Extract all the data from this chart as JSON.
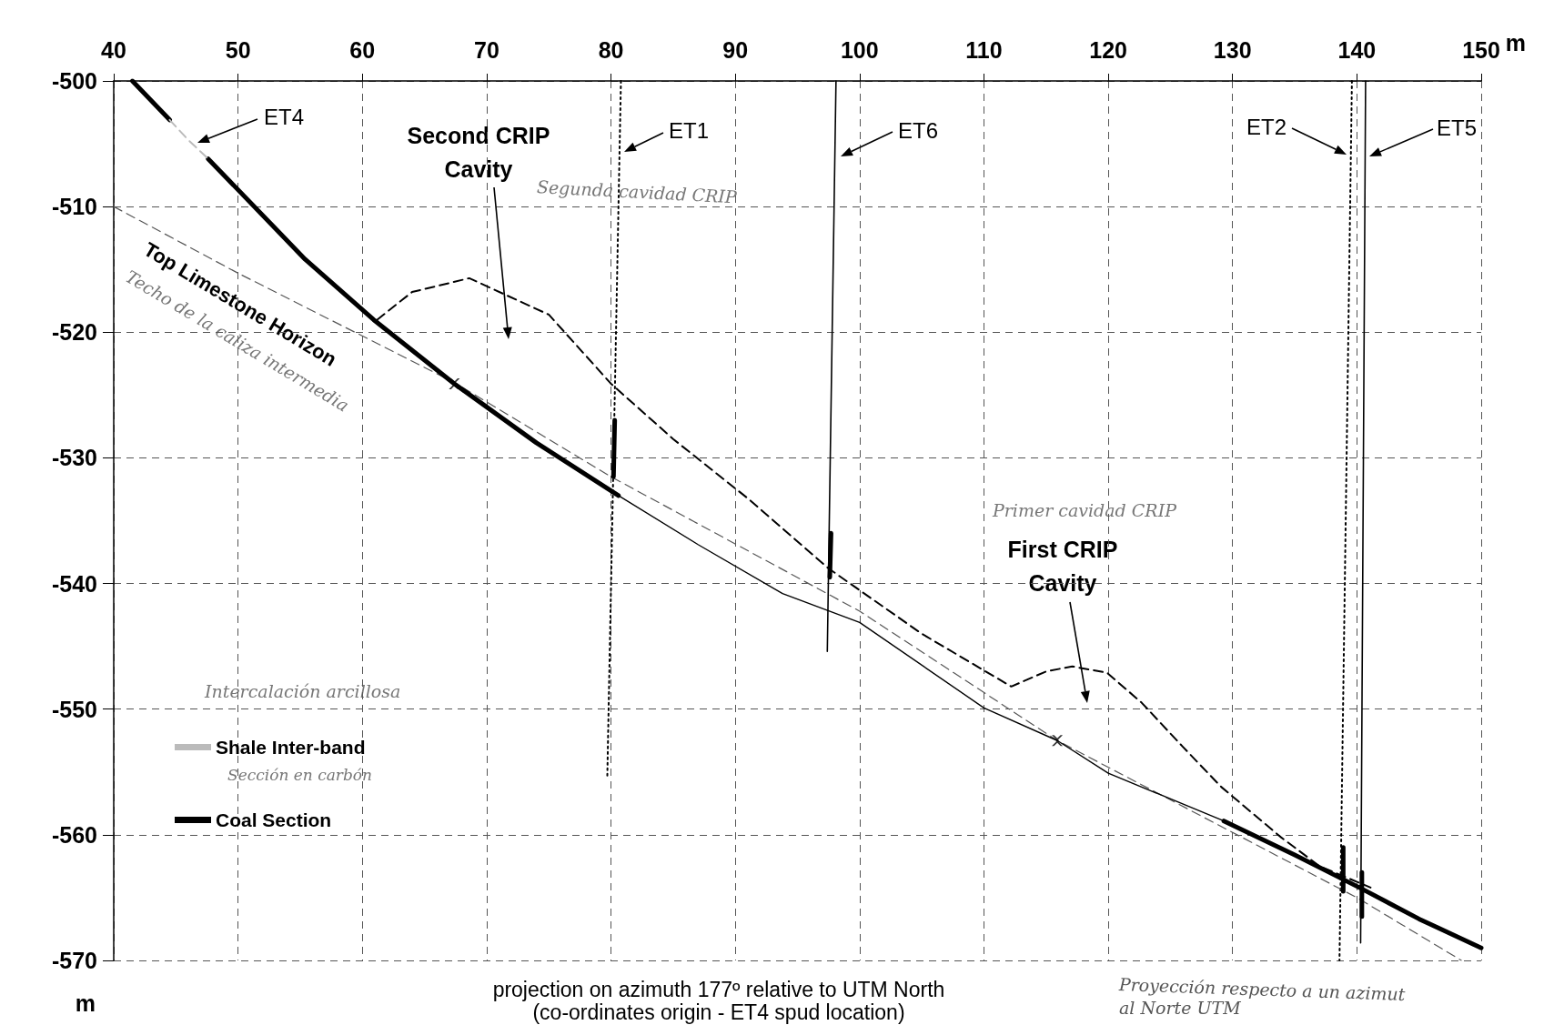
{
  "chart_data": {
    "type": "line",
    "xlabel": "m",
    "ylabel": "m",
    "xlim": [
      40,
      150
    ],
    "ylim": [
      -570,
      -500
    ],
    "xticks": [
      40,
      50,
      60,
      70,
      80,
      90,
      100,
      110,
      120,
      130,
      140,
      150
    ],
    "yticks": [
      -570,
      -560,
      -550,
      -540,
      -530,
      -520,
      -510,
      -500
    ],
    "grid": true,
    "legend": "left",
    "series": [
      {
        "name": "Shale Inter-band",
        "color": "#bbbbbb",
        "line_style": "dashed",
        "x": [
          44.5,
          46,
          47.6
        ],
        "values": [
          -503.1,
          -504.7,
          -506.2
        ]
      },
      {
        "name": "Coal Section",
        "color": "#000000",
        "line_style": "solid",
        "x": [
          41.5,
          44.5,
          46,
          47.6,
          55.4,
          60.9,
          67.4,
          74,
          80.6,
          80.5,
          80.3,
          80.2,
          90,
          97.7,
          97.6,
          110,
          129.3,
          135,
          140.2,
          145,
          150,
          145,
          138.9,
          138.9,
          139.5,
          140.4,
          140.4
        ],
        "values": [
          -500,
          -503.1,
          null,
          -506.2,
          -514.2,
          -519,
          -524.1,
          -528.8,
          -533,
          null,
          -527,
          -531.5,
          null,
          -536,
          -539.5,
          null,
          -558.9,
          -561.6,
          -564.2,
          -566.7,
          -569,
          null,
          -561,
          -564.5,
          null,
          -563,
          -566.5
        ]
      },
      {
        "color": "#000000",
        "line_style": "solid",
        "x": [
          80.6,
          87,
          93.8,
          100,
          110,
          115.9,
          120,
          129.3
        ],
        "values": [
          -533,
          -536.9,
          -540.8,
          -543.1,
          -549.9,
          -552.5,
          -555.1,
          -558.9
        ]
      },
      {
        "color": "#555555",
        "line_style": "dashed",
        "x": [
          40,
          50,
          67.4,
          80,
          100,
          115.9,
          140,
          148.4
        ],
        "values": [
          -510,
          -515.3,
          -524,
          -531.5,
          -542.2,
          -552.5,
          -565,
          -570
        ]
      },
      {
        "color": "#000000",
        "line_style": "dashed",
        "x": [
          61.2,
          64,
          68.6,
          75,
          80,
          85,
          91.1,
          97.5,
          105,
          112.2,
          115,
          117.1,
          119.9,
          122.7,
          126,
          129.1,
          133.9,
          137,
          141.1
        ],
        "values": [
          -519,
          -516.8,
          -515.7,
          -518.6,
          -524.1,
          -528.5,
          -533.3,
          -538.8,
          -544,
          -548.2,
          -547,
          -546.6,
          -547.1,
          -549.5,
          -553,
          -556.2,
          -560.2,
          -562.5,
          -564.2
        ]
      },
      {
        "color": "#000000",
        "line_style": "dotted",
        "x": [
          80.8,
          79.7
        ],
        "values": [
          -500,
          -555.5
        ]
      },
      {
        "color": "#000000",
        "line_style": "solid",
        "x": [
          98.1,
          97.4
        ],
        "values": [
          -500,
          -545.4
        ]
      },
      {
        "color": "#000000",
        "line_style": "dotted",
        "x": [
          139.6,
          138.6
        ],
        "values": [
          -500,
          -570
        ]
      },
      {
        "color": "#000000",
        "line_style": "solid",
        "x": [
          140.7,
          140.3
        ],
        "values": [
          -500,
          -568.6
        ]
      },
      {
        "type": "scatter",
        "color": "#000000",
        "marker": "cross",
        "x": [
          67.4,
          115.9
        ],
        "values": [
          -524.1,
          -552.5
        ]
      }
    ],
    "annotations": [
      "ET4",
      "ET1",
      "ET6",
      "ET2",
      "ET5",
      "Second CRIP\nCavity",
      "First CRIP\nCavity",
      "Top Limestone Horizon",
      "Techo de la caliza intermedia",
      "Segunda cavidad CRIP",
      "Primer cavidad CRIP",
      "Intercalación arcillosa",
      "Sección en carbón",
      "projection on azimuth 177º relative to UTM North",
      "(co-ordinates origin - ET4 spud location)",
      "Proyección respecto a un azimut",
      "al Norte UTM"
    ]
  }
}
